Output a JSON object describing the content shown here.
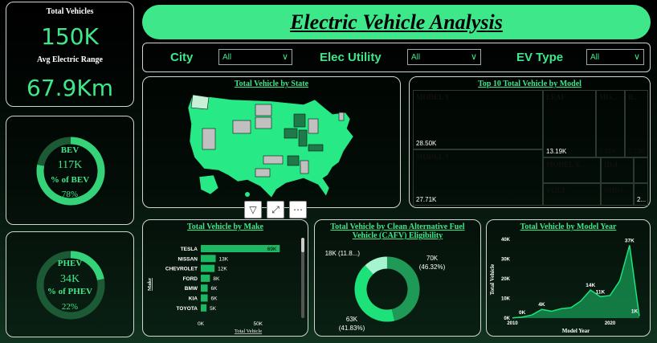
{
  "title": "Electric Vehicle Analysis",
  "kpis": {
    "total_vehicles_label": "Total Vehicles",
    "total_vehicles_value": "150K",
    "avg_range_label": "Avg Electric Range",
    "avg_range_value": "67.9Km"
  },
  "bev": {
    "label": "BEV",
    "value": "117K",
    "pct_label": "% of BEV",
    "pct": "78%",
    "fraction": 0.78
  },
  "phev": {
    "label": "PHEV",
    "value": "34K",
    "pct_label": "% of PHEV",
    "pct": "22%",
    "fraction": 0.22
  },
  "filters": [
    {
      "label": "City",
      "value": "All"
    },
    {
      "label": "Elec Utility",
      "value": "All"
    },
    {
      "label": "EV Type",
      "value": "All"
    }
  ],
  "map": {
    "title": "Total Vehicle by State"
  },
  "treemap": {
    "title": "Top 10 Total Vehicle by Model",
    "items": [
      {
        "name": "MODEL Y",
        "value": "28.50K",
        "color": "#1f4730"
      },
      {
        "name": "MODEL 3",
        "value": "27.71K",
        "color": "#1c9c55"
      },
      {
        "name": "LEAF",
        "value": "13.19K",
        "color": "#a4f5cf"
      },
      {
        "name": "MO...",
        "value": "7.61K",
        "color": "#6aa983"
      },
      {
        "name": "B...",
        "value": "5.73K",
        "color": "#1ba65a"
      },
      {
        "name": "MODEL X",
        "value": "",
        "color": "#2ee96d"
      },
      {
        "name": "ID.4",
        "value": "",
        "color": "#2ee96d"
      },
      {
        "name": "",
        "value": "",
        "color": "#20c25a"
      },
      {
        "name": "VOLT",
        "value": "",
        "color": "#a3f0a4"
      },
      {
        "name": "NIRO",
        "value": "",
        "color": "#7ef082"
      },
      {
        "name": "",
        "value": "2...",
        "color": "#14a650"
      }
    ]
  },
  "visual_icons": [
    "filter-icon",
    "focus-mode-icon",
    "more-options-icon"
  ],
  "chart_data": [
    {
      "type": "bar",
      "title": "Total Vehicle by Make",
      "ylabel": "Make",
      "xlabel": "Total Vehicle",
      "categories": [
        "TESLA",
        "NISSAN",
        "CHEVROLET",
        "FORD",
        "BMW",
        "KIA",
        "TOYOTA"
      ],
      "values": [
        69000,
        13000,
        12000,
        8000,
        6000,
        6000,
        5000
      ],
      "labels": [
        "69K",
        "13K",
        "12K",
        "8K",
        "6K",
        "6K",
        "5K"
      ],
      "xticks": [
        "0K",
        "50K"
      ],
      "xlim": [
        0,
        80000
      ],
      "color": "#1db862"
    },
    {
      "type": "pie",
      "title": "Total Vehicle by Clean Alternative Fuel Vehicle (CAFV) Eligibility",
      "values": [
        70000,
        63000,
        18000
      ],
      "labels": [
        "70K (46.32%)",
        "63K (41.83%)",
        "18K (11.8...)"
      ],
      "colors": [
        "#1f9a56",
        "#1de27a",
        "#a4f5cf"
      ]
    },
    {
      "type": "area",
      "title": "Total Vehicle by Model Year",
      "xlabel": "Model Year",
      "ylabel": "Total Vehicle",
      "x": [
        2010,
        2011,
        2012,
        2013,
        2014,
        2015,
        2016,
        2017,
        2018,
        2019,
        2020,
        2021,
        2022,
        2023
      ],
      "values": [
        100,
        500,
        1600,
        4400,
        3500,
        4800,
        5300,
        8700,
        14300,
        10900,
        11500,
        19000,
        37000,
        1000
      ],
      "point_labels": [
        {
          "x": 2011,
          "text": "0K"
        },
        {
          "x": 2013,
          "text": "4K"
        },
        {
          "x": 2018,
          "text": "14K"
        },
        {
          "x": 2019,
          "text": "11K"
        },
        {
          "x": 2022,
          "text": "37K"
        },
        {
          "x": 2023,
          "text": "1K"
        }
      ],
      "yticks": [
        "0K",
        "10K",
        "20K",
        "30K",
        "40K"
      ],
      "ylim": [
        0,
        40000
      ],
      "xticks": [
        "2010",
        "2020"
      ],
      "color": "#1de27a"
    }
  ]
}
